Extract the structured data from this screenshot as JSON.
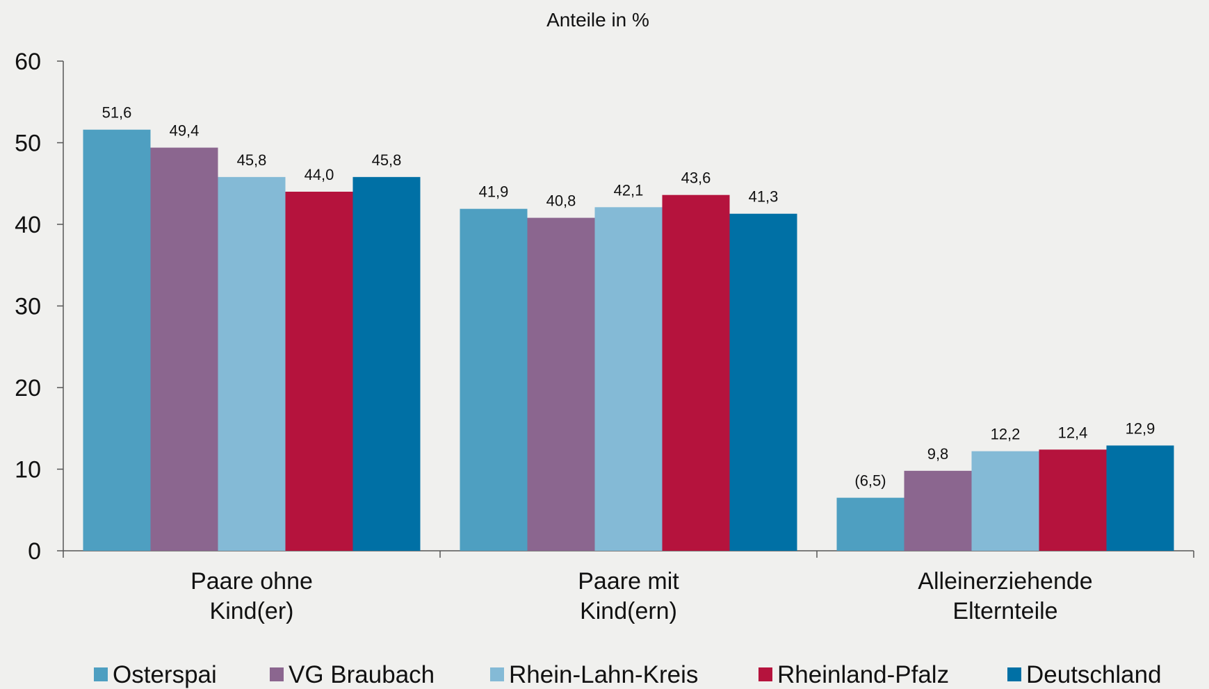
{
  "chart_data": {
    "type": "bar",
    "title": "Anteile in %",
    "xlabel": "",
    "ylabel": "",
    "ylim": [
      0,
      60
    ],
    "yticks": [
      0,
      10,
      20,
      30,
      40,
      50,
      60
    ],
    "grid": false,
    "legend_position": "bottom",
    "categories": [
      [
        "Paare ohne",
        "Kind(er)"
      ],
      [
        "Paare mit",
        "Kind(ern)"
      ],
      [
        "Alleinerziehende",
        "Elternteile"
      ]
    ],
    "series": [
      {
        "name": "Osterspai",
        "color": "#4e9fc1",
        "values": [
          51.6,
          41.9,
          6.5
        ],
        "labels": [
          "51,6",
          "41,9",
          "(6,5)"
        ]
      },
      {
        "name": "VG Braubach",
        "color": "#8b668f",
        "values": [
          49.4,
          40.8,
          9.8
        ],
        "labels": [
          "49,4",
          "40,8",
          "9,8"
        ]
      },
      {
        "name": "Rhein-Lahn-Kreis",
        "color": "#84bad6",
        "values": [
          45.8,
          42.1,
          12.2
        ],
        "labels": [
          "45,8",
          "42,1",
          "12,2"
        ]
      },
      {
        "name": "Rheinland-Pfalz",
        "color": "#b5133d",
        "values": [
          44.0,
          43.6,
          12.4
        ],
        "labels": [
          "44,0",
          "43,6",
          "12,4"
        ]
      },
      {
        "name": "Deutschland",
        "color": "#0070a5",
        "values": [
          45.8,
          41.3,
          12.9
        ],
        "labels": [
          "45,8",
          "41,3",
          "12,9"
        ]
      }
    ]
  }
}
